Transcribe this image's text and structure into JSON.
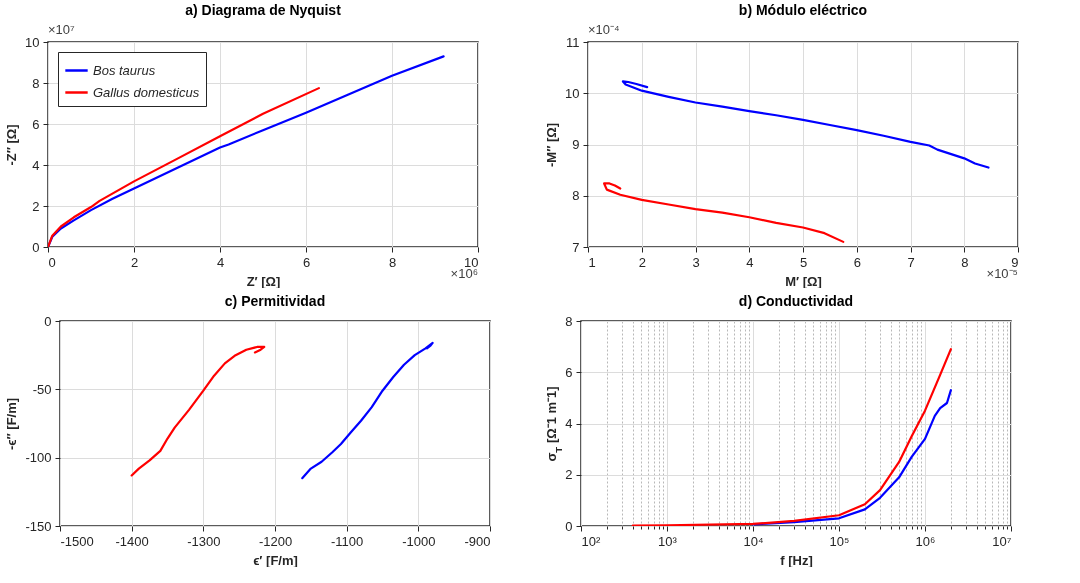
{
  "chart_data": [
    {
      "type": "line",
      "title": "a) Diagrama de Nyquist",
      "xlabel": "Z′ [Ω]",
      "ylabel": "-Z″ [Ω]",
      "xlim": [
        0,
        10
      ],
      "ylim": [
        0,
        10
      ],
      "xticks": [
        0,
        2,
        4,
        6,
        8,
        10
      ],
      "yticks": [
        0,
        2,
        4,
        6,
        8,
        10
      ],
      "annotations": [
        "×10⁷",
        "×10⁶"
      ],
      "grid": true,
      "legend": "top left",
      "series": [
        {
          "name": "Bos taurus",
          "color": "#0000ff",
          "x": [
            0,
            0.1,
            0.3,
            0.6,
            1,
            1.5,
            2,
            3,
            4,
            4.2,
            5,
            6,
            7,
            8,
            9.2
          ],
          "values": [
            0,
            0.5,
            0.9,
            1.3,
            1.8,
            2.35,
            2.85,
            3.85,
            4.85,
            5,
            5.7,
            6.55,
            7.45,
            8.35,
            9.3
          ]
        },
        {
          "name": "Gallus domesticus",
          "color": "#ff0000",
          "x": [
            0,
            0.1,
            0.3,
            0.6,
            1,
            1.2,
            2,
            3,
            4,
            5,
            6.3
          ],
          "values": [
            0,
            0.55,
            1,
            1.45,
            1.95,
            2.25,
            3.2,
            4.3,
            5.4,
            6.5,
            7.75
          ]
        }
      ]
    },
    {
      "type": "line",
      "title": "b) Módulo eléctrico",
      "xlabel": "M′ [Ω]",
      "ylabel": "-M″ [Ω]",
      "xlim": [
        1,
        9
      ],
      "ylim": [
        7,
        11
      ],
      "xticks": [
        1,
        2,
        3,
        4,
        5,
        6,
        7,
        8,
        9
      ],
      "yticks": [
        7,
        8,
        9,
        10,
        11
      ],
      "annotations": [
        "×10⁻⁴",
        "×10⁻⁵"
      ],
      "grid": true,
      "series": [
        {
          "color": "#0000ff",
          "x": [
            2.1,
            1.9,
            1.75,
            1.65,
            1.7,
            2,
            2.5,
            3,
            3.5,
            4,
            4.5,
            5,
            5.5,
            6,
            6.5,
            7,
            7.35,
            7.5,
            8,
            8.2,
            8.45
          ],
          "values": [
            10.12,
            10.18,
            10.22,
            10.23,
            10.17,
            10.05,
            9.93,
            9.82,
            9.74,
            9.65,
            9.57,
            9.48,
            9.38,
            9.28,
            9.17,
            9.05,
            8.98,
            8.9,
            8.73,
            8.63,
            8.55
          ]
        },
        {
          "color": "#ff0000",
          "x": [
            1.6,
            1.5,
            1.4,
            1.3,
            1.35,
            1.6,
            2,
            2.5,
            3,
            3.5,
            4,
            4.5,
            5,
            5.4,
            5.75
          ],
          "values": [
            8.14,
            8.2,
            8.24,
            8.24,
            8.12,
            8.02,
            7.92,
            7.83,
            7.74,
            7.67,
            7.58,
            7.47,
            7.38,
            7.27,
            7.1
          ]
        }
      ]
    },
    {
      "type": "line",
      "title": "c) Permitividad",
      "xlabel": "ϵ′ [F/m]",
      "ylabel": "-ϵ″ [F/m]",
      "xlim": [
        -1500,
        -900
      ],
      "ylim": [
        -150,
        0
      ],
      "xticks": [
        -1500,
        -1400,
        -1300,
        -1200,
        -1100,
        -1000,
        -900
      ],
      "yticks": [
        -150,
        -100,
        -50,
        0
      ],
      "grid": true,
      "series": [
        {
          "color": "#ff0000",
          "x": [
            -1400,
            -1390,
            -1375,
            -1360,
            -1350,
            -1340,
            -1320,
            -1300,
            -1285,
            -1270,
            -1255,
            -1240,
            -1225,
            -1215,
            -1220,
            -1228
          ],
          "values": [
            -113,
            -108,
            -102,
            -95,
            -86,
            -78,
            -65,
            -51,
            -40,
            -31,
            -25,
            -21,
            -19,
            -19,
            -21,
            -23
          ]
        },
        {
          "color": "#0000ff",
          "x": [
            -1162,
            -1150,
            -1135,
            -1120,
            -1108,
            -1095,
            -1080,
            -1065,
            -1050,
            -1035,
            -1020,
            -1005,
            -990,
            -980,
            -983,
            -988
          ],
          "values": [
            -115,
            -108,
            -103,
            -96,
            -90,
            -82,
            -73,
            -63,
            -51,
            -41,
            -32,
            -25,
            -20,
            -16,
            -18,
            -20
          ]
        }
      ]
    },
    {
      "type": "line",
      "title": "d) Conductividad",
      "xlabel": "f [Hz]",
      "ylabel": "σ$_{T}$ [Ω⁻1 m⁻1]",
      "log": "x",
      "xlim": [
        100,
        10000000
      ],
      "ylim": [
        0,
        8
      ],
      "xticks": [
        {
          "value": 100,
          "label": "10²"
        },
        {
          "value": 200,
          "label": null
        },
        {
          "value": 300,
          "label": null
        },
        {
          "value": 400,
          "label": null
        },
        {
          "value": 500,
          "label": null
        },
        {
          "value": 600,
          "label": null
        },
        {
          "value": 700,
          "label": null
        },
        {
          "value": 800,
          "label": null
        },
        {
          "value": 900,
          "label": null
        },
        {
          "value": 1000,
          "label": "10³"
        },
        {
          "value": 2000,
          "label": null
        },
        {
          "value": 3000,
          "label": null
        },
        {
          "value": 4000,
          "label": null
        },
        {
          "value": 5000,
          "label": null
        },
        {
          "value": 6000,
          "label": null
        },
        {
          "value": 7000,
          "label": null
        },
        {
          "value": 8000,
          "label": null
        },
        {
          "value": 9000,
          "label": null
        },
        {
          "value": 10000,
          "label": "10⁴"
        },
        {
          "value": 20000,
          "label": null
        },
        {
          "value": 30000,
          "label": null
        },
        {
          "value": 40000,
          "label": null
        },
        {
          "value": 50000,
          "label": null
        },
        {
          "value": 60000,
          "label": null
        },
        {
          "value": 70000,
          "label": null
        },
        {
          "value": 80000,
          "label": null
        },
        {
          "value": 90000,
          "label": null
        },
        {
          "value": 100000,
          "label": "10⁵"
        },
        {
          "value": 200000,
          "label": null
        },
        {
          "value": 300000,
          "label": null
        },
        {
          "value": 400000,
          "label": null
        },
        {
          "value": 500000,
          "label": null
        },
        {
          "value": 600000,
          "label": null
        },
        {
          "value": 700000,
          "label": null
        },
        {
          "value": 800000,
          "label": null
        },
        {
          "value": 900000,
          "label": null
        },
        {
          "value": 1000000,
          "label": "10⁶"
        },
        {
          "value": 2000000,
          "label": null
        },
        {
          "value": 3000000,
          "label": null
        },
        {
          "value": 4000000,
          "label": null
        },
        {
          "value": 5000000,
          "label": null
        },
        {
          "value": 6000000,
          "label": null
        },
        {
          "value": 7000000,
          "label": null
        },
        {
          "value": 8000000,
          "label": null
        },
        {
          "value": 9000000,
          "label": null
        },
        {
          "value": 10000000,
          "label": "10⁷"
        }
      ],
      "yticks": [
        0,
        2,
        4,
        6,
        8
      ],
      "grid": true,
      "series": [
        {
          "color": "#0000ff",
          "x": [
            10000,
            30000,
            100000,
            200000,
            300000,
            500000,
            700000,
            1000000,
            1300000,
            1500000,
            1800000,
            2000000
          ],
          "values": [
            0.06,
            0.15,
            0.3,
            0.65,
            1.1,
            1.9,
            2.7,
            3.4,
            4.3,
            4.6,
            4.8,
            5.3
          ]
        },
        {
          "color": "#ff0000",
          "x": [
            400,
            1000,
            10000,
            30000,
            100000,
            200000,
            300000,
            500000,
            700000,
            1000000,
            1500000,
            2000000
          ],
          "values": [
            0.02,
            0.03,
            0.08,
            0.2,
            0.42,
            0.85,
            1.4,
            2.5,
            3.5,
            4.5,
            5.9,
            6.9
          ]
        }
      ]
    }
  ]
}
